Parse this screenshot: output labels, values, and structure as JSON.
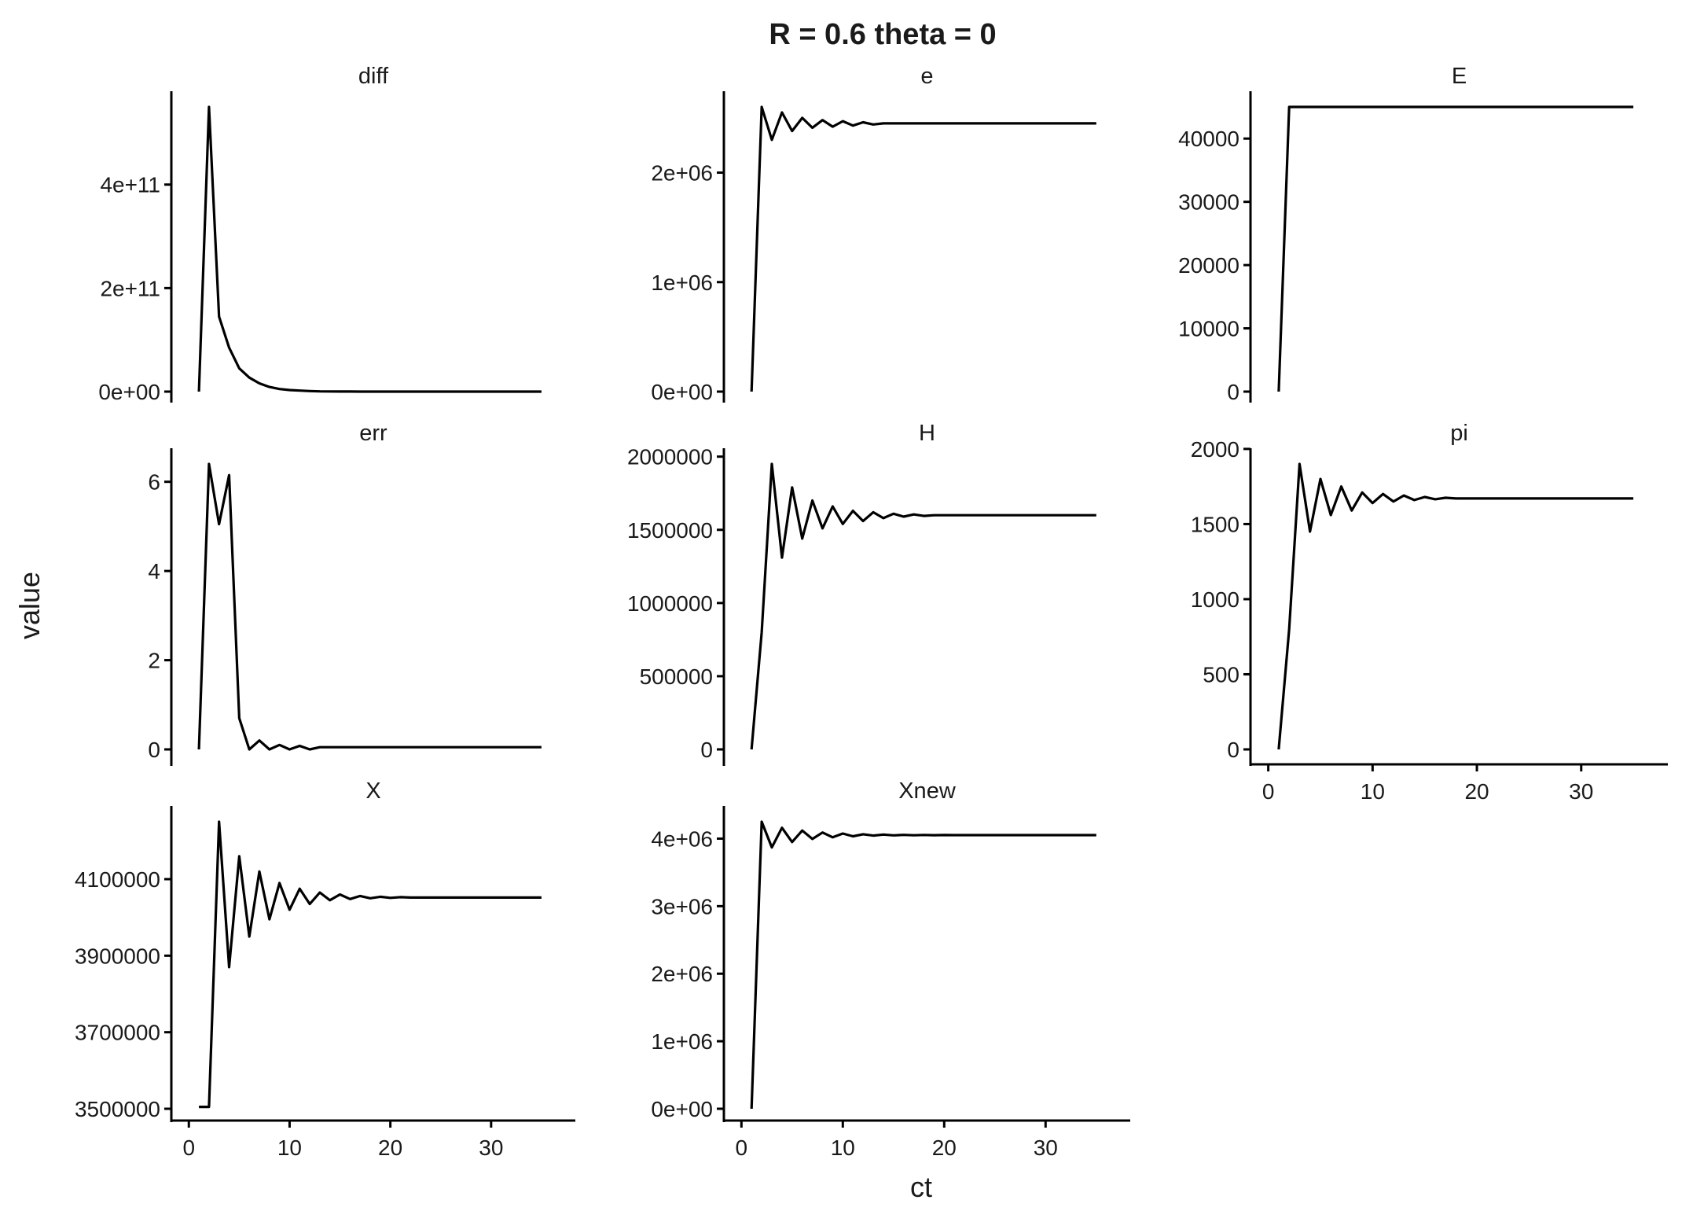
{
  "chart_data": {
    "type": "line",
    "title": "R =  0.6 theta =  0",
    "xlabel": "ct",
    "ylabel": "value",
    "grid": false,
    "layout": "facet-wrap 3 columns, free y scales",
    "facets": [
      {
        "name": "diff",
        "ylim": [
          0,
          550000000000
        ],
        "yticks": [
          0,
          200000000000,
          400000000000
        ],
        "yticklabels": [
          "0e+00",
          "2e+11",
          "4e+11"
        ],
        "x": [
          1,
          2,
          3,
          4,
          5,
          6,
          7,
          8,
          9,
          10,
          11,
          12,
          13,
          14,
          15,
          16,
          17,
          18,
          19,
          20,
          21,
          22,
          23,
          24,
          25,
          26,
          27,
          28,
          29,
          30,
          31,
          32,
          33,
          34,
          35
        ],
        "y": [
          0,
          550000000000,
          145000000000,
          85000000000,
          45000000000,
          27000000000,
          16000000000,
          9000000000,
          5000000000,
          3000000000,
          2000000000,
          1000000000,
          500000000,
          300000000,
          200000000,
          100000000,
          0,
          0,
          0,
          0,
          0,
          0,
          0,
          0,
          0,
          0,
          0,
          0,
          0,
          0,
          0,
          0,
          0,
          0,
          0
        ]
      },
      {
        "name": "e",
        "ylim": [
          0,
          2600000
        ],
        "yticks": [
          0,
          1000000,
          2000000
        ],
        "yticklabels": [
          "0e+00",
          "1e+06",
          "2e+06"
        ],
        "x": [
          1,
          2,
          3,
          4,
          5,
          6,
          7,
          8,
          9,
          10,
          11,
          12,
          13,
          14,
          15,
          16,
          17,
          18,
          19,
          20,
          21,
          22,
          23,
          24,
          25,
          26,
          27,
          28,
          29,
          30,
          31,
          32,
          33,
          34,
          35
        ],
        "y": [
          0,
          2600000,
          2300000,
          2550000,
          2380000,
          2500000,
          2410000,
          2480000,
          2420000,
          2470000,
          2430000,
          2460000,
          2440000,
          2450000,
          2450000,
          2450000,
          2450000,
          2450000,
          2450000,
          2450000,
          2450000,
          2450000,
          2450000,
          2450000,
          2450000,
          2450000,
          2450000,
          2450000,
          2450000,
          2450000,
          2450000,
          2450000,
          2450000,
          2450000,
          2450000
        ]
      },
      {
        "name": "E",
        "ylim": [
          0,
          45000
        ],
        "yticks": [
          0,
          10000,
          20000,
          30000,
          40000
        ],
        "yticklabels": [
          "0",
          "10000",
          "20000",
          "30000",
          "40000"
        ],
        "x": [
          1,
          2,
          3,
          4,
          5,
          6,
          7,
          8,
          9,
          10,
          11,
          12,
          13,
          14,
          15,
          16,
          17,
          18,
          19,
          20,
          21,
          22,
          23,
          24,
          25,
          26,
          27,
          28,
          29,
          30,
          31,
          32,
          33,
          34,
          35
        ],
        "y": [
          0,
          45000,
          45000,
          45000,
          45000,
          45000,
          45000,
          45000,
          45000,
          45000,
          45000,
          45000,
          45000,
          45000,
          45000,
          45000,
          45000,
          45000,
          45000,
          45000,
          45000,
          45000,
          45000,
          45000,
          45000,
          45000,
          45000,
          45000,
          45000,
          45000,
          45000,
          45000,
          45000,
          45000,
          45000
        ]
      },
      {
        "name": "err",
        "ylim": [
          0,
          6.4
        ],
        "yticks": [
          0,
          2,
          4,
          6
        ],
        "yticklabels": [
          "0",
          "2",
          "4",
          "6"
        ],
        "x": [
          1,
          2,
          3,
          4,
          5,
          6,
          7,
          8,
          9,
          10,
          11,
          12,
          13,
          14,
          15,
          16,
          17,
          18,
          19,
          20,
          21,
          22,
          23,
          24,
          25,
          26,
          27,
          28,
          29,
          30,
          31,
          32,
          33,
          34,
          35
        ],
        "y": [
          0,
          6.4,
          5.05,
          6.15,
          0.7,
          0,
          0.2,
          0,
          0.1,
          0,
          0.08,
          0,
          0.05,
          0.05,
          0.05,
          0.05,
          0.05,
          0.05,
          0.05,
          0.05,
          0.05,
          0.05,
          0.05,
          0.05,
          0.05,
          0.05,
          0.05,
          0.05,
          0.05,
          0.05,
          0.05,
          0.05,
          0.05,
          0.05,
          0.05
        ]
      },
      {
        "name": "H",
        "ylim": [
          0,
          1950000
        ],
        "yticks": [
          0,
          500000,
          1000000,
          1500000,
          2000000
        ],
        "yticklabels": [
          "0",
          "500000",
          "1000000",
          "1500000",
          "2000000"
        ],
        "x": [
          1,
          2,
          3,
          4,
          5,
          6,
          7,
          8,
          9,
          10,
          11,
          12,
          13,
          14,
          15,
          16,
          17,
          18,
          19,
          20,
          21,
          22,
          23,
          24,
          25,
          26,
          27,
          28,
          29,
          30,
          31,
          32,
          33,
          34,
          35
        ],
        "y": [
          0,
          800000,
          1950000,
          1310000,
          1790000,
          1440000,
          1700000,
          1510000,
          1660000,
          1540000,
          1630000,
          1560000,
          1620000,
          1580000,
          1610000,
          1590000,
          1605000,
          1595000,
          1600000,
          1600000,
          1600000,
          1600000,
          1600000,
          1600000,
          1600000,
          1600000,
          1600000,
          1600000,
          1600000,
          1600000,
          1600000,
          1600000,
          1600000,
          1600000,
          1600000
        ]
      },
      {
        "name": "pi",
        "ylim": [
          0,
          1900
        ],
        "yticks": [
          0,
          500,
          1000,
          1500,
          2000
        ],
        "yticklabels": [
          "0",
          "500",
          "1000",
          "1500",
          "2000"
        ],
        "x": [
          1,
          2,
          3,
          4,
          5,
          6,
          7,
          8,
          9,
          10,
          11,
          12,
          13,
          14,
          15,
          16,
          17,
          18,
          19,
          20,
          21,
          22,
          23,
          24,
          25,
          26,
          27,
          28,
          29,
          30,
          31,
          32,
          33,
          34,
          35
        ],
        "y": [
          0,
          800,
          1900,
          1450,
          1800,
          1560,
          1750,
          1590,
          1710,
          1640,
          1700,
          1650,
          1690,
          1660,
          1680,
          1665,
          1675,
          1670,
          1670,
          1670,
          1670,
          1670,
          1670,
          1670,
          1670,
          1670,
          1670,
          1670,
          1670,
          1670,
          1670,
          1670,
          1670,
          1670,
          1670
        ]
      },
      {
        "name": "X",
        "ylim": [
          3500000,
          4250000
        ],
        "yticks": [
          3500000,
          3700000,
          3900000,
          4100000
        ],
        "yticklabels": [
          "3500000",
          "3700000",
          "3900000",
          "4100000"
        ],
        "x": [
          1,
          2,
          3,
          4,
          5,
          6,
          7,
          8,
          9,
          10,
          11,
          12,
          13,
          14,
          15,
          16,
          17,
          18,
          19,
          20,
          21,
          22,
          23,
          24,
          25,
          26,
          27,
          28,
          29,
          30,
          31,
          32,
          33,
          34,
          35
        ],
        "y": [
          3505000,
          3505000,
          4250000,
          3870000,
          4160000,
          3950000,
          4120000,
          3995000,
          4090000,
          4020000,
          4075000,
          4035000,
          4065000,
          4045000,
          4060000,
          4048000,
          4056000,
          4050000,
          4054000,
          4051000,
          4053000,
          4052000,
          4052000,
          4052000,
          4052000,
          4052000,
          4052000,
          4052000,
          4052000,
          4052000,
          4052000,
          4052000,
          4052000,
          4052000,
          4052000
        ]
      },
      {
        "name": "Xnew",
        "ylim": [
          0,
          4250000
        ],
        "yticks": [
          0,
          1000000,
          2000000,
          3000000,
          4000000
        ],
        "yticklabels": [
          "0e+00",
          "1e+06",
          "2e+06",
          "3e+06",
          "4e+06"
        ],
        "x": [
          1,
          2,
          3,
          4,
          5,
          6,
          7,
          8,
          9,
          10,
          11,
          12,
          13,
          14,
          15,
          16,
          17,
          18,
          19,
          20,
          21,
          22,
          23,
          24,
          25,
          26,
          27,
          28,
          29,
          30,
          31,
          32,
          33,
          34,
          35
        ],
        "y": [
          0,
          4250000,
          3870000,
          4160000,
          3950000,
          4120000,
          3995000,
          4090000,
          4020000,
          4075000,
          4035000,
          4065000,
          4045000,
          4060000,
          4048000,
          4056000,
          4050000,
          4054000,
          4051000,
          4053000,
          4052000,
          4052000,
          4052000,
          4052000,
          4052000,
          4052000,
          4052000,
          4052000,
          4052000,
          4052000,
          4052000,
          4052000,
          4052000,
          4052000,
          4052000
        ]
      }
    ],
    "xticks": [
      0,
      10,
      20,
      30
    ],
    "xticklabels": [
      "0",
      "10",
      "20",
      "30"
    ],
    "xlim": [
      1,
      35
    ],
    "x_axis_labeled_facets": [
      "pi",
      "X",
      "Xnew"
    ]
  }
}
